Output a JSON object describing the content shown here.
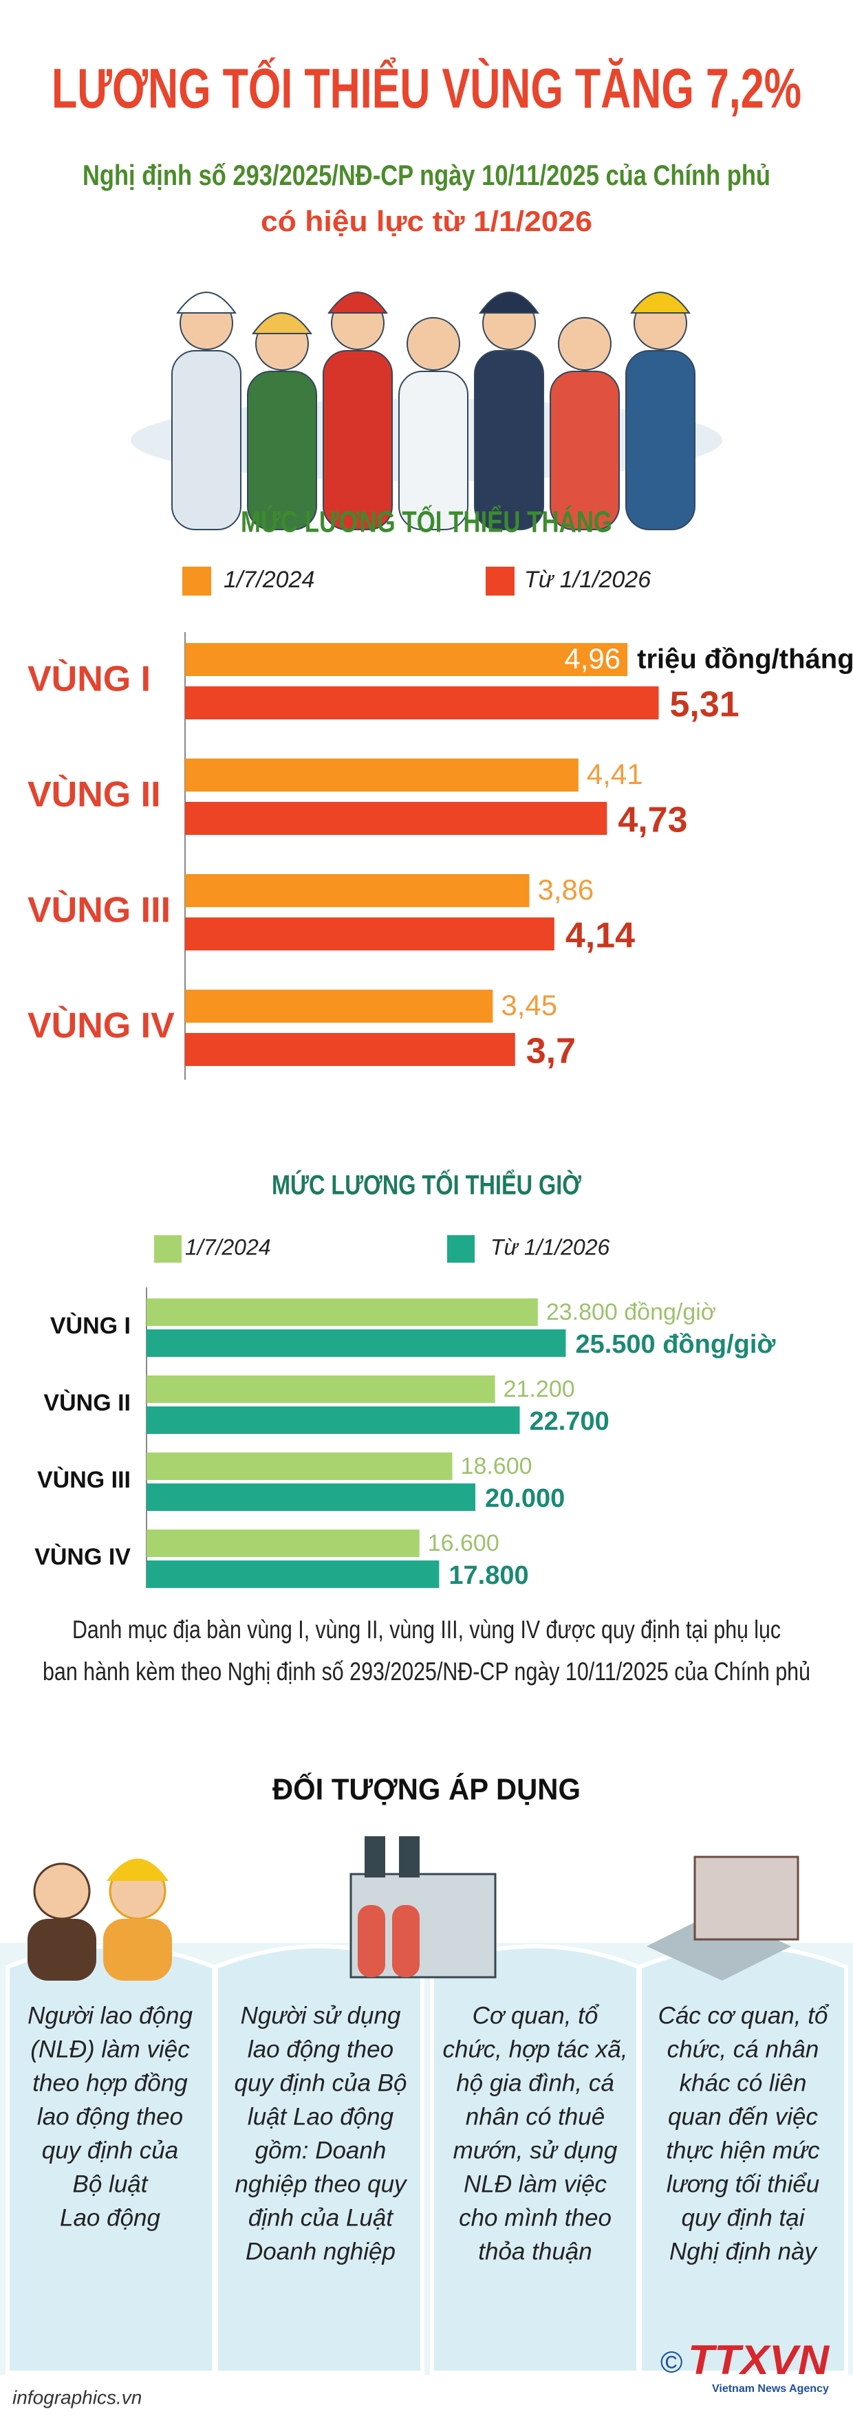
{
  "header": {
    "title": "LƯƠNG TỐI THIỂU VÙNG TĂNG 7,2%",
    "subtitle_1": "Nghị định số 293/2025/NĐ-CP ngày 10/11/2025 của Chính phủ",
    "subtitle_2": "có hiệu lực từ 1/1/2026"
  },
  "chart_data": [
    {
      "type": "hbar",
      "title": "MỨC LƯƠNG TỐI THIỂU THÁNG",
      "categories": [
        "VÙNG I",
        "VÙNG II",
        "VÙNG III",
        "VÙNG IV"
      ],
      "unit_label": "triệu đồng/tháng",
      "xlim": [
        0,
        6
      ],
      "series": [
        {
          "name": "1/7/2024",
          "color": "#f7931e",
          "values": [
            4.96,
            4.41,
            3.86,
            3.45
          ],
          "value_labels": [
            "4,96",
            "4,41",
            "3,86",
            "3,45"
          ]
        },
        {
          "name": "Từ 1/1/2026",
          "color": "#ec4425",
          "values": [
            5.31,
            4.73,
            4.14,
            3.7
          ],
          "value_labels": [
            "5,31",
            "4,73",
            "4,14",
            "3,7"
          ]
        }
      ]
    },
    {
      "type": "hbar",
      "title": "MỨC LƯƠNG TỐI THIỂU GIỜ",
      "categories": [
        "VÙNG I",
        "VÙNG II",
        "VÙNG III",
        "VÙNG IV"
      ],
      "xlim": [
        0,
        30000
      ],
      "series": [
        {
          "name": "1/7/2024",
          "color": "#a8d46f",
          "values": [
            23800,
            21200,
            18600,
            16600
          ],
          "value_labels": [
            "23.800 đồng/giờ",
            "21.200",
            "18.600",
            "16.600"
          ]
        },
        {
          "name": "Từ 1/1/2026",
          "color": "#1fa98a",
          "values": [
            25500,
            22700,
            20000,
            17800
          ],
          "value_labels": [
            "25.500 đồng/giờ",
            "22.700",
            "20.000",
            "17.800"
          ]
        }
      ]
    }
  ],
  "note": {
    "line_1": "Danh mục địa bàn vùng I, vùng II, vùng III, vùng IV được quy định tại phụ lục",
    "line_2": "ban hành kèm theo Nghị định số 293/2025/NĐ-CP ngày 10/11/2025 của Chính phủ"
  },
  "targets_title": "ĐỐI TƯỢNG ÁP DỤNG",
  "target_groups": [
    {
      "lines": [
        "Người lao động",
        "(NLĐ) làm việc",
        "theo hợp đồng",
        "lao động theo",
        "quy định của",
        "Bộ luật",
        "Lao động"
      ]
    },
    {
      "lines": [
        "Người sử dụng",
        "lao động theo",
        "quy định của Bộ",
        "luật Lao động",
        "gồm: Doanh",
        "nghiệp theo quy",
        "định của Luật",
        "Doanh nghiệp"
      ]
    },
    {
      "lines": [
        "Cơ quan, tổ",
        "chức, hợp tác xã,",
        "hộ gia đình, cá",
        "nhân có thuê",
        "mướn, sử dụng",
        "NLĐ làm việc",
        "cho mình theo",
        "thỏa thuận"
      ]
    },
    {
      "lines": [
        "Các cơ quan, tổ",
        "chức, cá nhân",
        "khác có liên",
        "quan đến việc",
        "thực hiện mức",
        "lương tối thiểu",
        "quy định tại",
        "Nghị định này"
      ]
    }
  ],
  "footer": {
    "website": "infographics.vn",
    "copyright": "©",
    "logo": "TTXVN",
    "agency": "Vietnam News Agency"
  }
}
